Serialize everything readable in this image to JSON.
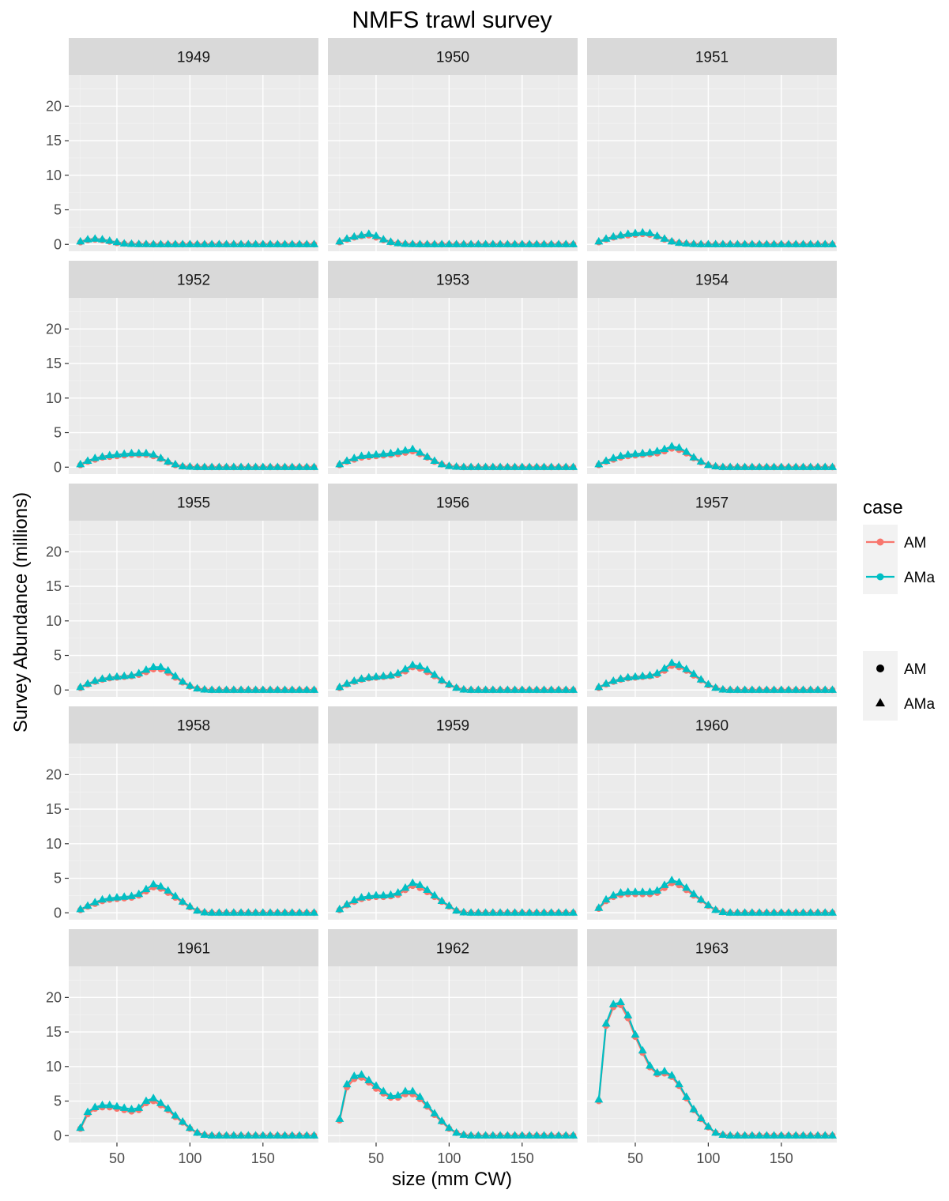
{
  "chart_data": {
    "type": "line",
    "title": "NMFS trawl survey",
    "xlabel": "size (mm CW)",
    "ylabel": "Survey Abundance (millions)",
    "xlim": [
      17,
      188
    ],
    "ylim": [
      -1,
      24.5
    ],
    "x_ticks": [
      50,
      100,
      150
    ],
    "y_ticks": [
      0,
      5,
      10,
      15,
      20
    ],
    "grid": true,
    "facet_layout": "5 rows x 3 columns",
    "legend_placement": "right",
    "legend": {
      "color_title": "case",
      "color_entries": [
        {
          "name": "AM",
          "color": "#F8766D"
        },
        {
          "name": "AMa",
          "color": "#00BFC4"
        }
      ],
      "shape_title": "",
      "shape_entries": [
        {
          "name": "AM",
          "shape": "circle"
        },
        {
          "name": "AMa",
          "shape": "triangle"
        }
      ]
    },
    "x": [
      25,
      30,
      35,
      40,
      45,
      50,
      55,
      60,
      65,
      70,
      75,
      80,
      85,
      90,
      95,
      100,
      105,
      110,
      115,
      120,
      125,
      130,
      135,
      140,
      145,
      150,
      155,
      160,
      165,
      170,
      175,
      180,
      185
    ],
    "series_styles": [
      {
        "name": "AM",
        "color": "#F8766D",
        "shape": "circle"
      },
      {
        "name": "AMa",
        "color": "#00BFC4",
        "shape": "triangle"
      }
    ],
    "facets": [
      {
        "label": "1949",
        "AM": [
          0.3,
          0.6,
          0.7,
          0.6,
          0.4,
          0.2,
          0.1,
          0.05,
          0.02,
          0.01,
          0,
          0,
          0,
          0,
          0,
          0,
          0,
          0,
          0,
          0,
          0,
          0,
          0,
          0,
          0,
          0,
          0,
          0,
          0,
          0,
          0,
          0,
          0
        ],
        "AMa": [
          0.4,
          0.7,
          0.8,
          0.7,
          0.5,
          0.3,
          0.1,
          0.05,
          0.02,
          0.01,
          0,
          0,
          0,
          0,
          0,
          0,
          0,
          0,
          0,
          0,
          0,
          0,
          0,
          0,
          0,
          0,
          0,
          0,
          0,
          0,
          0,
          0,
          0
        ]
      },
      {
        "label": "1950",
        "AM": [
          0.3,
          0.7,
          1.0,
          1.2,
          1.3,
          1.0,
          0.6,
          0.3,
          0.15,
          0.05,
          0.02,
          0,
          0,
          0,
          0,
          0,
          0,
          0,
          0,
          0,
          0,
          0,
          0,
          0,
          0,
          0,
          0,
          0,
          0,
          0,
          0,
          0,
          0
        ],
        "AMa": [
          0.4,
          0.8,
          1.1,
          1.3,
          1.5,
          1.2,
          0.7,
          0.35,
          0.15,
          0.05,
          0.02,
          0,
          0,
          0,
          0,
          0,
          0,
          0,
          0,
          0,
          0,
          0,
          0,
          0,
          0,
          0,
          0,
          0,
          0,
          0,
          0,
          0,
          0
        ]
      },
      {
        "label": "1951",
        "AM": [
          0.3,
          0.7,
          1.0,
          1.2,
          1.3,
          1.4,
          1.5,
          1.4,
          1.1,
          0.7,
          0.4,
          0.2,
          0.1,
          0.03,
          0,
          0,
          0,
          0,
          0,
          0,
          0,
          0,
          0,
          0,
          0,
          0,
          0,
          0,
          0,
          0,
          0,
          0,
          0
        ],
        "AMa": [
          0.4,
          0.8,
          1.1,
          1.3,
          1.5,
          1.6,
          1.7,
          1.6,
          1.2,
          0.8,
          0.4,
          0.2,
          0.1,
          0.03,
          0,
          0,
          0,
          0,
          0,
          0,
          0,
          0,
          0,
          0,
          0,
          0,
          0,
          0,
          0,
          0,
          0,
          0,
          0
        ]
      },
      {
        "label": "1952",
        "AM": [
          0.3,
          0.8,
          1.1,
          1.4,
          1.5,
          1.6,
          1.7,
          1.8,
          1.8,
          1.8,
          1.6,
          1.2,
          0.7,
          0.3,
          0.1,
          0.05,
          0,
          0,
          0,
          0,
          0,
          0,
          0,
          0,
          0,
          0,
          0,
          0,
          0,
          0,
          0,
          0,
          0
        ],
        "AMa": [
          0.4,
          0.9,
          1.3,
          1.5,
          1.7,
          1.8,
          1.9,
          2.0,
          2.0,
          2.0,
          1.8,
          1.3,
          0.8,
          0.4,
          0.1,
          0.05,
          0,
          0,
          0,
          0,
          0,
          0,
          0,
          0,
          0,
          0,
          0,
          0,
          0,
          0,
          0,
          0,
          0
        ]
      },
      {
        "label": "1953",
        "AM": [
          0.3,
          0.8,
          1.1,
          1.4,
          1.5,
          1.6,
          1.7,
          1.8,
          1.9,
          2.1,
          2.3,
          1.9,
          1.4,
          0.8,
          0.4,
          0.15,
          0.05,
          0,
          0,
          0,
          0,
          0,
          0,
          0,
          0,
          0,
          0,
          0,
          0,
          0,
          0,
          0,
          0
        ],
        "AMa": [
          0.4,
          0.9,
          1.3,
          1.6,
          1.7,
          1.8,
          1.9,
          2.0,
          2.2,
          2.4,
          2.6,
          2.1,
          1.5,
          0.9,
          0.4,
          0.15,
          0.05,
          0,
          0,
          0,
          0,
          0,
          0,
          0,
          0,
          0,
          0,
          0,
          0,
          0,
          0,
          0,
          0
        ]
      },
      {
        "label": "1954",
        "AM": [
          0.3,
          0.8,
          1.1,
          1.4,
          1.6,
          1.7,
          1.8,
          1.9,
          2.0,
          2.3,
          2.7,
          2.5,
          2.0,
          1.3,
          0.7,
          0.3,
          0.1,
          0,
          0,
          0,
          0,
          0,
          0,
          0,
          0,
          0,
          0,
          0,
          0,
          0,
          0,
          0,
          0
        ],
        "AMa": [
          0.4,
          0.9,
          1.3,
          1.6,
          1.8,
          1.9,
          2.0,
          2.1,
          2.3,
          2.6,
          3.0,
          2.8,
          2.2,
          1.4,
          0.8,
          0.3,
          0.1,
          0,
          0,
          0,
          0,
          0,
          0,
          0,
          0,
          0,
          0,
          0,
          0,
          0,
          0,
          0,
          0
        ]
      },
      {
        "label": "1955",
        "AM": [
          0.3,
          0.8,
          1.2,
          1.5,
          1.7,
          1.8,
          1.9,
          2.0,
          2.2,
          2.6,
          3.0,
          3.0,
          2.5,
          1.8,
          1.1,
          0.5,
          0.2,
          0.05,
          0,
          0,
          0,
          0,
          0,
          0,
          0,
          0,
          0,
          0,
          0,
          0,
          0,
          0,
          0
        ],
        "AMa": [
          0.4,
          0.9,
          1.3,
          1.6,
          1.8,
          1.9,
          2.0,
          2.1,
          2.4,
          2.9,
          3.3,
          3.3,
          2.8,
          2.0,
          1.2,
          0.6,
          0.2,
          0.05,
          0,
          0,
          0,
          0,
          0,
          0,
          0,
          0,
          0,
          0,
          0,
          0,
          0,
          0,
          0
        ]
      },
      {
        "label": "1956",
        "AM": [
          0.3,
          0.8,
          1.2,
          1.5,
          1.7,
          1.8,
          1.9,
          2.0,
          2.2,
          2.7,
          3.3,
          3.1,
          2.6,
          2.0,
          1.3,
          0.7,
          0.3,
          0.05,
          0,
          0,
          0,
          0,
          0,
          0,
          0,
          0,
          0,
          0,
          0,
          0,
          0,
          0,
          0
        ],
        "AMa": [
          0.4,
          0.9,
          1.3,
          1.6,
          1.8,
          1.9,
          2.0,
          2.1,
          2.4,
          3.0,
          3.6,
          3.4,
          2.9,
          2.2,
          1.4,
          0.8,
          0.3,
          0.05,
          0,
          0,
          0,
          0,
          0,
          0,
          0,
          0,
          0,
          0,
          0,
          0,
          0,
          0,
          0
        ]
      },
      {
        "label": "1957",
        "AM": [
          0.3,
          0.8,
          1.2,
          1.5,
          1.7,
          1.8,
          1.9,
          2.0,
          2.2,
          2.8,
          3.5,
          3.3,
          2.8,
          2.1,
          1.4,
          0.7,
          0.3,
          0.05,
          0,
          0,
          0,
          0,
          0,
          0,
          0,
          0,
          0,
          0,
          0,
          0,
          0,
          0,
          0
        ],
        "AMa": [
          0.4,
          0.9,
          1.3,
          1.6,
          1.8,
          1.9,
          2.0,
          2.1,
          2.4,
          3.1,
          3.9,
          3.6,
          3.0,
          2.3,
          1.5,
          0.8,
          0.3,
          0.05,
          0,
          0,
          0,
          0,
          0,
          0,
          0,
          0,
          0,
          0,
          0,
          0,
          0,
          0,
          0
        ]
      },
      {
        "label": "1958",
        "AM": [
          0.4,
          0.9,
          1.3,
          1.7,
          1.9,
          2.0,
          2.1,
          2.2,
          2.5,
          3.1,
          3.7,
          3.5,
          2.9,
          2.2,
          1.5,
          0.8,
          0.3,
          0.05,
          0,
          0,
          0,
          0,
          0,
          0,
          0,
          0,
          0,
          0,
          0,
          0,
          0,
          0,
          0
        ],
        "AMa": [
          0.5,
          1.0,
          1.5,
          1.9,
          2.1,
          2.2,
          2.3,
          2.4,
          2.7,
          3.4,
          4.1,
          3.8,
          3.2,
          2.4,
          1.6,
          0.9,
          0.3,
          0.05,
          0,
          0,
          0,
          0,
          0,
          0,
          0,
          0,
          0,
          0,
          0,
          0,
          0,
          0,
          0
        ]
      },
      {
        "label": "1959",
        "AM": [
          0.4,
          1.1,
          1.6,
          2.0,
          2.2,
          2.3,
          2.3,
          2.4,
          2.6,
          3.3,
          3.9,
          3.6,
          3.0,
          2.3,
          1.6,
          0.9,
          0.3,
          0.05,
          0,
          0,
          0,
          0,
          0,
          0,
          0,
          0,
          0,
          0,
          0,
          0,
          0,
          0,
          0
        ],
        "AMa": [
          0.5,
          1.2,
          1.8,
          2.2,
          2.4,
          2.5,
          2.5,
          2.6,
          2.9,
          3.6,
          4.3,
          4.0,
          3.3,
          2.5,
          1.7,
          1.0,
          0.3,
          0.05,
          0,
          0,
          0,
          0,
          0,
          0,
          0,
          0,
          0,
          0,
          0,
          0,
          0,
          0,
          0
        ]
      },
      {
        "label": "1960",
        "AM": [
          0.6,
          1.7,
          2.3,
          2.6,
          2.7,
          2.7,
          2.7,
          2.7,
          2.9,
          3.6,
          4.3,
          4.0,
          3.3,
          2.5,
          1.8,
          1.0,
          0.4,
          0.1,
          0,
          0,
          0,
          0,
          0,
          0,
          0,
          0,
          0,
          0,
          0,
          0,
          0,
          0,
          0
        ],
        "AMa": [
          0.7,
          1.9,
          2.5,
          2.9,
          3.0,
          3.0,
          3.0,
          3.0,
          3.2,
          4.0,
          4.7,
          4.4,
          3.6,
          2.7,
          1.9,
          1.1,
          0.4,
          0.1,
          0,
          0,
          0,
          0,
          0,
          0,
          0,
          0,
          0,
          0,
          0,
          0,
          0,
          0,
          0
        ]
      },
      {
        "label": "1961",
        "AM": [
          1.0,
          3.1,
          3.9,
          4.1,
          4.1,
          3.9,
          3.7,
          3.5,
          3.7,
          4.7,
          5.0,
          4.4,
          3.7,
          2.7,
          1.9,
          1.0,
          0.4,
          0.1,
          0,
          0,
          0,
          0,
          0,
          0,
          0,
          0,
          0,
          0,
          0,
          0,
          0,
          0,
          0
        ],
        "AMa": [
          1.1,
          3.4,
          4.1,
          4.4,
          4.4,
          4.2,
          4.0,
          3.8,
          4.0,
          5.0,
          5.4,
          4.7,
          3.9,
          2.9,
          2.0,
          1.1,
          0.4,
          0.1,
          0,
          0,
          0,
          0,
          0,
          0,
          0,
          0,
          0,
          0,
          0,
          0,
          0,
          0,
          0
        ]
      },
      {
        "label": "1962",
        "AM": [
          2.2,
          7.0,
          8.2,
          8.4,
          7.7,
          6.8,
          6.1,
          5.5,
          5.5,
          6.0,
          6.0,
          5.3,
          4.2,
          3.0,
          2.0,
          1.0,
          0.4,
          0.1,
          0,
          0,
          0,
          0,
          0,
          0,
          0,
          0,
          0,
          0,
          0,
          0,
          0,
          0,
          0
        ],
        "AMa": [
          2.4,
          7.4,
          8.6,
          8.8,
          8.0,
          7.2,
          6.4,
          5.7,
          5.8,
          6.4,
          6.4,
          5.6,
          4.4,
          3.2,
          2.1,
          1.1,
          0.4,
          0.1,
          0,
          0,
          0,
          0,
          0,
          0,
          0,
          0,
          0,
          0,
          0,
          0,
          0,
          0,
          0
        ]
      },
      {
        "label": "1963",
        "AM": [
          5.0,
          15.9,
          18.6,
          18.9,
          17.0,
          14.3,
          12.0,
          9.9,
          8.9,
          9.0,
          8.5,
          7.2,
          5.4,
          3.7,
          2.4,
          1.2,
          0.4,
          0.1,
          0,
          0,
          0,
          0,
          0,
          0,
          0,
          0,
          0,
          0,
          0,
          0,
          0,
          0,
          0
        ],
        "AMa": [
          5.2,
          16.2,
          19.0,
          19.3,
          17.4,
          14.6,
          12.3,
          10.1,
          9.1,
          9.3,
          8.7,
          7.4,
          5.6,
          3.8,
          2.5,
          1.3,
          0.4,
          0.1,
          0,
          0,
          0,
          0,
          0,
          0,
          0,
          0,
          0,
          0,
          0,
          0,
          0,
          0,
          0
        ]
      }
    ]
  }
}
